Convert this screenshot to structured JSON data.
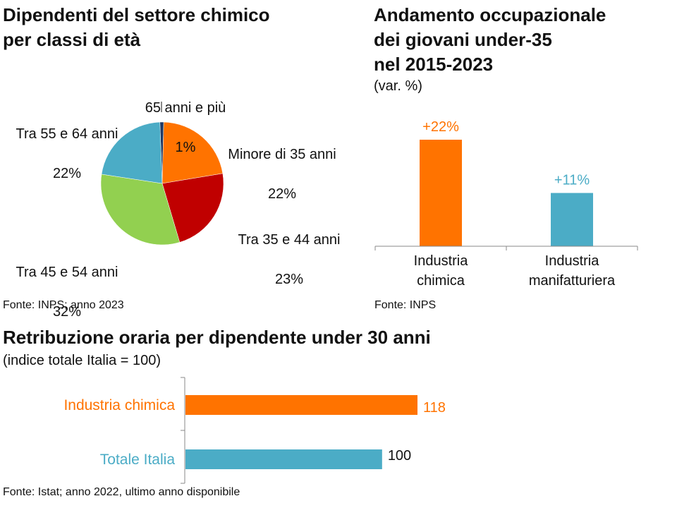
{
  "pie_section": {
    "title": "Dipendenti del settore chimico\nper classi di età",
    "source": "Fonte: INPS; anno 2023"
  },
  "trend_section": {
    "title": "Andamento occupazionale\ndei giovani under-35\nnel 2015-2023",
    "subtitle": "(var. %)",
    "source": "Fonte: INPS"
  },
  "wage_section": {
    "title": "Retribuzione oraria per dipendente under 30 anni",
    "subtitle": "(indice totale Italia = 100)",
    "source": "Fonte: Istat; anno 2022, ultimo anno disponibile"
  },
  "chart_data": [
    {
      "type": "pie",
      "title": "Dipendenti del settore chimico per classi di età",
      "slices": [
        {
          "label": "65 anni e più",
          "value": 1,
          "value_label": "1%",
          "color": "#1f3864"
        },
        {
          "label": "Minore di 35 anni",
          "value": 22,
          "value_label": "22%",
          "color": "#ff7300"
        },
        {
          "label": "Tra 35 e 44 anni",
          "value": 23,
          "value_label": "23%",
          "color": "#c00000"
        },
        {
          "label": "Tra 45 e 54 anni",
          "value": 32,
          "value_label": "32%",
          "color": "#92d050"
        },
        {
          "label": "Tra 55 e 64 anni",
          "value": 22,
          "value_label": "22%",
          "color": "#4bacc6"
        }
      ]
    },
    {
      "type": "bar",
      "title": "Andamento occupazionale dei giovani under-35 nel 2015-2023",
      "ylabel": "(var. %)",
      "categories": [
        "Industria\nchimica",
        "Industria\nmanifatturiera"
      ],
      "values": [
        22,
        11
      ],
      "value_labels": [
        "+22%",
        "+11%"
      ],
      "colors": [
        "#ff7300",
        "#4bacc6"
      ],
      "ylim": [
        0,
        25
      ]
    },
    {
      "type": "bar",
      "orientation": "horizontal",
      "title": "Retribuzione oraria per dipendente under 30 anni",
      "xlabel": "(indice totale Italia = 100)",
      "categories": [
        "Industria chimica",
        "Totale Italia"
      ],
      "values": [
        118,
        100
      ],
      "value_labels": [
        "118",
        "100"
      ],
      "colors": [
        "#ff7300",
        "#4bacc6"
      ],
      "xlim": [
        0,
        125
      ]
    }
  ]
}
